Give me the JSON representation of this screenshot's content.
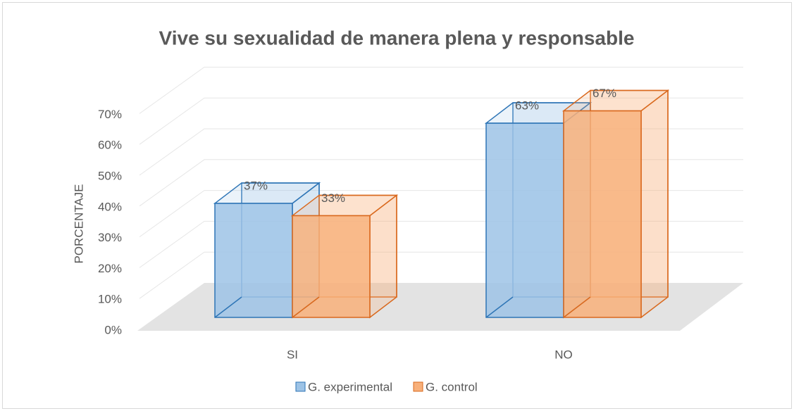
{
  "chart_data": {
    "type": "bar3d",
    "title": "Vive su sexualidad de manera plena y responsable",
    "y_label": "PORCENTAJE",
    "categories": [
      "SI",
      "NO"
    ],
    "series": [
      {
        "name": "G. experimental",
        "color": "#9dc3e6",
        "edge": "#2e75b6",
        "values": [
          37,
          63
        ],
        "value_labels": [
          "37%",
          "63%"
        ]
      },
      {
        "name": "G. control",
        "color": "#f8b07a",
        "edge": "#d9691e",
        "values": [
          33,
          67
        ],
        "value_labels": [
          "33%",
          "67%"
        ]
      }
    ],
    "ylim": [
      0,
      70
    ],
    "yticks": [
      {
        "value": 0,
        "label": "0%"
      },
      {
        "value": 10,
        "label": "10%"
      },
      {
        "value": 20,
        "label": "20%"
      },
      {
        "value": 30,
        "label": "30%"
      },
      {
        "value": 40,
        "label": "40%"
      },
      {
        "value": 50,
        "label": "50%"
      },
      {
        "value": 60,
        "label": "60%"
      },
      {
        "value": 70,
        "label": "70%"
      }
    ],
    "grid": true,
    "legend": "bottom"
  }
}
